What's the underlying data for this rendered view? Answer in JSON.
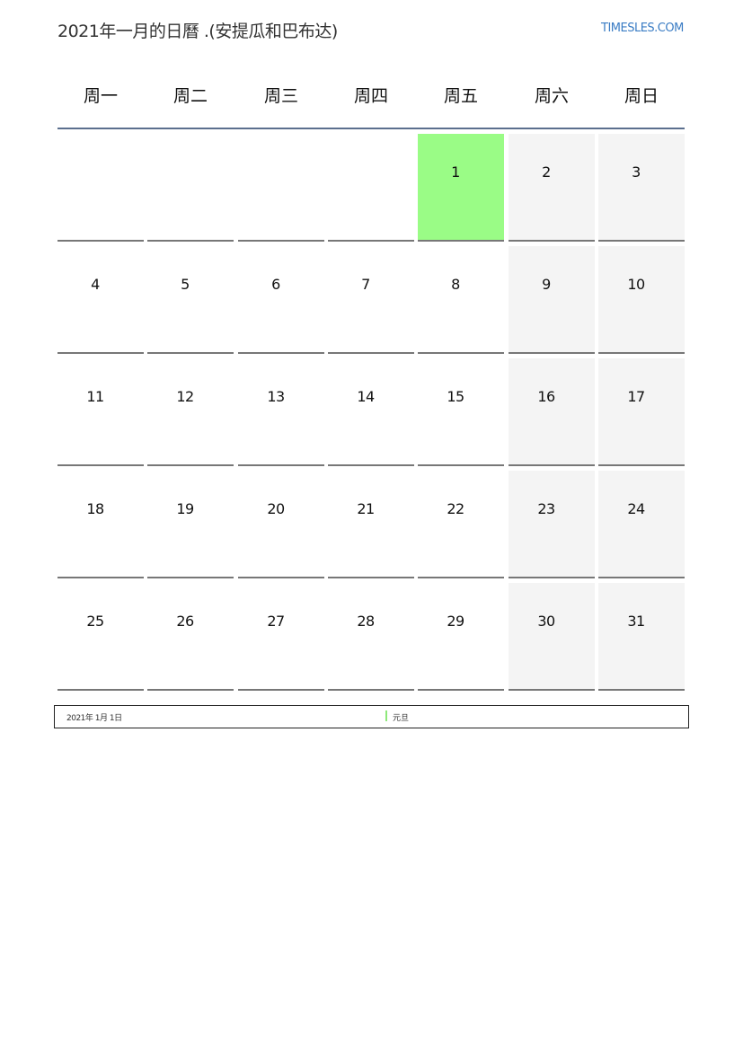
{
  "header": {
    "title": "2021年一月的日曆 .(安提瓜和巴布达)",
    "logo": "TIMESLES.COM"
  },
  "weekdays": [
    "周一",
    "周二",
    "周三",
    "周四",
    "周五",
    "周六",
    "周日"
  ],
  "first_weekday_index": 4,
  "days_in_month": 31,
  "holidays": [
    {
      "day": 1,
      "date_label": "2021年 1月 1日",
      "name": "元旦"
    }
  ],
  "colors": {
    "holiday": "#9afc86",
    "weekend": "#f4f4f4",
    "header_line": "#5b6f8e",
    "logo": "#3a7cc4"
  }
}
